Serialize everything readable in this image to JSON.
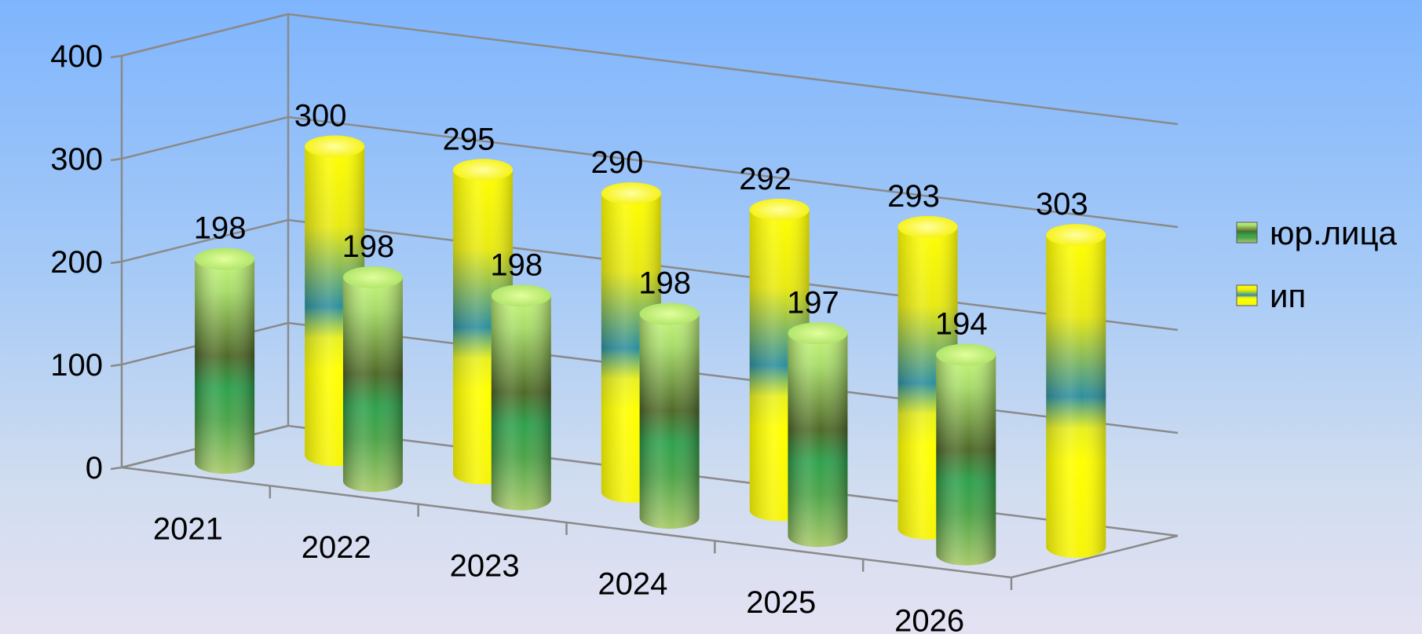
{
  "chart_data": {
    "type": "bar",
    "style": "3d-cylinder",
    "categories": [
      "2021",
      "2022",
      "2023",
      "2024",
      "2025",
      "2026"
    ],
    "series": [
      {
        "name": "юр.лица",
        "values": [
          198,
          198,
          198,
          198,
          197,
          194
        ],
        "color": "#8fd14f"
      },
      {
        "name": "ип",
        "values": [
          300,
          295,
          290,
          292,
          293,
          303
        ],
        "color": "#ffff00"
      }
    ],
    "ylim": [
      0,
      400
    ],
    "yticks": [
      "0",
      "100",
      "200",
      "300",
      "400"
    ],
    "grid": true,
    "legend_position": "right"
  }
}
